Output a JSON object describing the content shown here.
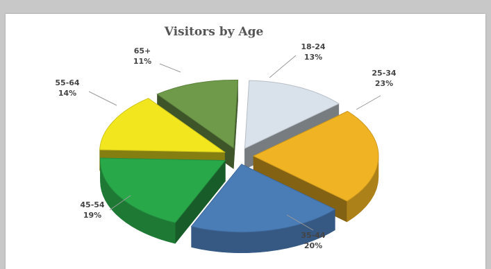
{
  "chart_data": {
    "type": "pie",
    "title": "Visitors by Age",
    "categories": [
      "18-24",
      "25-34",
      "35-44",
      "45-54",
      "55-64",
      "65+"
    ],
    "values": [
      13,
      23,
      20,
      19,
      14,
      11
    ],
    "value_labels": [
      "13%",
      "23%",
      "20%",
      "19%",
      "14%",
      "11%"
    ],
    "colors": [
      "#d9e1ea",
      "#f0b323",
      "#4a7cb6",
      "#29a84a",
      "#f2e61e",
      "#6f9a4a"
    ],
    "style": "3d-exploded",
    "legend": "none"
  }
}
